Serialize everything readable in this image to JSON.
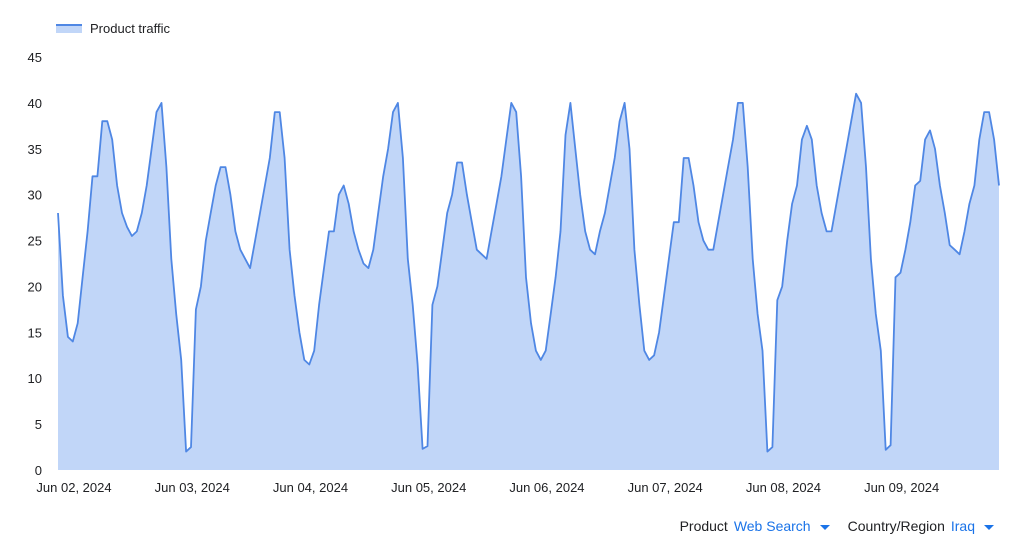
{
  "legend": {
    "label": "Product traffic",
    "color": "#4f87e4",
    "fill": "#c1d6f8"
  },
  "filters": [
    {
      "name": "Product",
      "value": "Web Search",
      "icon": "chevron-down-icon"
    },
    {
      "name": "Country/Region",
      "value": "Iraq",
      "icon": "chevron-down-icon"
    }
  ],
  "chart_data": {
    "type": "area",
    "title": "",
    "xlabel": "",
    "ylabel": "",
    "ylim": [
      0,
      45
    ],
    "yticks": [
      0,
      5,
      10,
      15,
      20,
      25,
      30,
      35,
      40,
      45
    ],
    "grid": false,
    "legend_position": "top-left",
    "xlim": [
      0,
      191
    ],
    "x_unit": "hours since Jun 02, 2024 00:00",
    "xticks": [
      {
        "x": 0,
        "label": "Jun 02, 2024"
      },
      {
        "x": 24,
        "label": "Jun 03, 2024"
      },
      {
        "x": 48,
        "label": "Jun 04, 2024"
      },
      {
        "x": 72,
        "label": "Jun 05, 2024"
      },
      {
        "x": 96,
        "label": "Jun 06, 2024"
      },
      {
        "x": 120,
        "label": "Jun 07, 2024"
      },
      {
        "x": 144,
        "label": "Jun 08, 2024"
      },
      {
        "x": 168,
        "label": "Jun 09, 2024"
      }
    ],
    "series": [
      {
        "name": "Product traffic",
        "points": [
          [
            0,
            28
          ],
          [
            1,
            19
          ],
          [
            2,
            14.5
          ],
          [
            3,
            14
          ],
          [
            4,
            16
          ],
          [
            5,
            21
          ],
          [
            6,
            26
          ],
          [
            7,
            32
          ],
          [
            8,
            32
          ],
          [
            9,
            38
          ],
          [
            10,
            38
          ],
          [
            11,
            36
          ],
          [
            12,
            31
          ],
          [
            13,
            28
          ],
          [
            14,
            26.5
          ],
          [
            15,
            25.5
          ],
          [
            16,
            26
          ],
          [
            17,
            28
          ],
          [
            18,
            31
          ],
          [
            19,
            35
          ],
          [
            20,
            39
          ],
          [
            21,
            40
          ],
          [
            22,
            33
          ],
          [
            23,
            23
          ],
          [
            24,
            17
          ],
          [
            25,
            12
          ],
          [
            26,
            2
          ],
          [
            27,
            2.5
          ],
          [
            28,
            17.5
          ],
          [
            29,
            20
          ],
          [
            30,
            25
          ],
          [
            31,
            28
          ],
          [
            32,
            31
          ],
          [
            33,
            33
          ],
          [
            34,
            33
          ],
          [
            35,
            30
          ],
          [
            36,
            26
          ],
          [
            37,
            24
          ],
          [
            38,
            23
          ],
          [
            39,
            22
          ],
          [
            40,
            25
          ],
          [
            41,
            28
          ],
          [
            42,
            31
          ],
          [
            43,
            34
          ],
          [
            44,
            39
          ],
          [
            45,
            39
          ],
          [
            46,
            34
          ],
          [
            47,
            24
          ],
          [
            48,
            19
          ],
          [
            49,
            15
          ],
          [
            50,
            12
          ],
          [
            51,
            11.5
          ],
          [
            52,
            13
          ],
          [
            53,
            18
          ],
          [
            54,
            22
          ],
          [
            55,
            26
          ],
          [
            56,
            26
          ],
          [
            57,
            30
          ],
          [
            58,
            31
          ],
          [
            59,
            29
          ],
          [
            60,
            26
          ],
          [
            61,
            24
          ],
          [
            62,
            22.5
          ],
          [
            63,
            22
          ],
          [
            64,
            24
          ],
          [
            65,
            28
          ],
          [
            66,
            32
          ],
          [
            67,
            35
          ],
          [
            68,
            39
          ],
          [
            69,
            40
          ],
          [
            70,
            34
          ],
          [
            71,
            23
          ],
          [
            72,
            18
          ],
          [
            73,
            11.5
          ],
          [
            74,
            2.3
          ],
          [
            75,
            2.6
          ],
          [
            76,
            18
          ],
          [
            77,
            20
          ],
          [
            78,
            24
          ],
          [
            79,
            28
          ],
          [
            80,
            30
          ],
          [
            81,
            33.5
          ],
          [
            82,
            33.5
          ],
          [
            83,
            30
          ],
          [
            84,
            27
          ],
          [
            85,
            24
          ],
          [
            86,
            23.5
          ],
          [
            87,
            23
          ],
          [
            88,
            26
          ],
          [
            89,
            29
          ],
          [
            90,
            32
          ],
          [
            91,
            36
          ],
          [
            92,
            40
          ],
          [
            93,
            39
          ],
          [
            94,
            32
          ],
          [
            95,
            21
          ],
          [
            96,
            16
          ],
          [
            97,
            13
          ],
          [
            98,
            12
          ],
          [
            99,
            13
          ],
          [
            100,
            17
          ],
          [
            101,
            21
          ],
          [
            102,
            26
          ],
          [
            103,
            36.5
          ],
          [
            104,
            40
          ],
          [
            105,
            35
          ],
          [
            106,
            30
          ],
          [
            107,
            26
          ],
          [
            108,
            24
          ],
          [
            109,
            23.5
          ],
          [
            110,
            26
          ],
          [
            111,
            28
          ],
          [
            112,
            31
          ],
          [
            113,
            34
          ],
          [
            114,
            38
          ],
          [
            115,
            40
          ],
          [
            116,
            35
          ],
          [
            117,
            24
          ],
          [
            118,
            18
          ],
          [
            119,
            13
          ],
          [
            120,
            12
          ],
          [
            121,
            12.5
          ],
          [
            122,
            15
          ],
          [
            123,
            19
          ],
          [
            124,
            23
          ],
          [
            125,
            27
          ],
          [
            126,
            27
          ],
          [
            127,
            34
          ],
          [
            128,
            34
          ],
          [
            129,
            31
          ],
          [
            130,
            27
          ],
          [
            131,
            25
          ],
          [
            132,
            24
          ],
          [
            133,
            24
          ],
          [
            134,
            27
          ],
          [
            135,
            30
          ],
          [
            136,
            33
          ],
          [
            137,
            36
          ],
          [
            138,
            40
          ],
          [
            139,
            40
          ],
          [
            140,
            33
          ],
          [
            141,
            23
          ],
          [
            142,
            17
          ],
          [
            143,
            13
          ],
          [
            144,
            2
          ],
          [
            145,
            2.5
          ],
          [
            146,
            18.5
          ],
          [
            147,
            20
          ],
          [
            148,
            25
          ],
          [
            149,
            29
          ],
          [
            150,
            31
          ],
          [
            151,
            36
          ],
          [
            152,
            37.5
          ],
          [
            153,
            36
          ],
          [
            154,
            31
          ],
          [
            155,
            28
          ],
          [
            156,
            26
          ],
          [
            157,
            26
          ],
          [
            158,
            29
          ],
          [
            159,
            32
          ],
          [
            160,
            35
          ],
          [
            161,
            38
          ],
          [
            162,
            41
          ],
          [
            163,
            40
          ],
          [
            164,
            33
          ],
          [
            165,
            23
          ],
          [
            166,
            17
          ],
          [
            167,
            13
          ],
          [
            168,
            2.2
          ],
          [
            169,
            2.7
          ],
          [
            170,
            21
          ],
          [
            171,
            21.5
          ],
          [
            172,
            24
          ],
          [
            173,
            27
          ],
          [
            174,
            31
          ],
          [
            175,
            31.5
          ],
          [
            176,
            36
          ],
          [
            177,
            37
          ],
          [
            178,
            35
          ],
          [
            179,
            31
          ],
          [
            180,
            28
          ],
          [
            181,
            24.5
          ],
          [
            182,
            24
          ],
          [
            183,
            23.5
          ],
          [
            184,
            26
          ],
          [
            185,
            29
          ],
          [
            186,
            31
          ],
          [
            187,
            36
          ],
          [
            188,
            39
          ],
          [
            189,
            39
          ],
          [
            190,
            36
          ],
          [
            191,
            31
          ]
        ]
      }
    ]
  }
}
